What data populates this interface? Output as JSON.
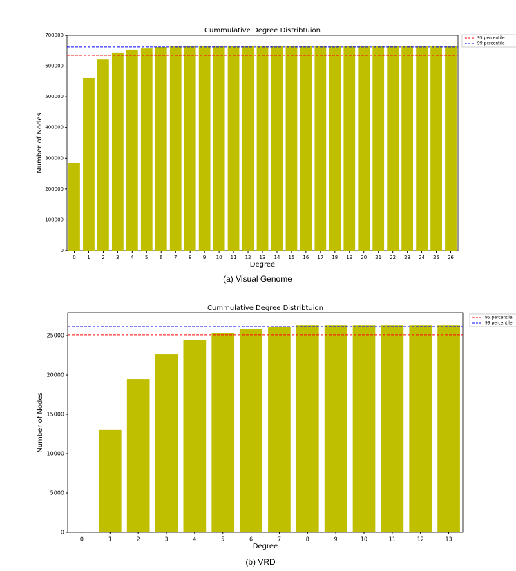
{
  "chart_data": [
    {
      "type": "bar",
      "title": "Cummulative Degree Distribtuion",
      "xlabel": "Degree",
      "ylabel": "Number of Nodes",
      "caption": "(a) Visual Genome",
      "categories": [
        0,
        1,
        2,
        3,
        4,
        5,
        6,
        7,
        8,
        9,
        10,
        11,
        12,
        13,
        14,
        15,
        16,
        17,
        18,
        19,
        20,
        21,
        22,
        23,
        24,
        25,
        26
      ],
      "values": [
        285000,
        561000,
        621000,
        642000,
        653000,
        657000,
        662000,
        664000,
        666000,
        666000,
        666000,
        666000,
        666000,
        666000,
        666000,
        666000,
        666000,
        666000,
        666000,
        666000,
        666000,
        666000,
        666000,
        666000,
        666000,
        666000,
        666000
      ],
      "color": "#bfbf00",
      "ylim": [
        0,
        700000
      ],
      "yticks": [
        0,
        100000,
        200000,
        300000,
        400000,
        500000,
        600000,
        700000
      ],
      "hlines": [
        {
          "name": "95 percentile",
          "color": "#ff0000",
          "value": 635000
        },
        {
          "name": "99 percentile",
          "color": "#0000ff",
          "value": 662000
        }
      ]
    },
    {
      "type": "bar",
      "title": "Cummulative Degree Distribtuion",
      "xlabel": "Degree",
      "ylabel": "Number of Nodes",
      "caption": "(b) VRD",
      "categories": [
        0,
        1,
        2,
        3,
        4,
        5,
        6,
        7,
        8,
        9,
        10,
        11,
        12,
        13
      ],
      "values": [
        0,
        13000,
        19470,
        22630,
        24470,
        25350,
        25880,
        26150,
        26300,
        26300,
        26300,
        26300,
        26300,
        26300
      ],
      "color": "#bfbf00",
      "ylim": [
        0,
        27900
      ],
      "yticks": [
        0,
        5000,
        10000,
        15000,
        20000,
        25000
      ],
      "hlines": [
        {
          "name": "95 percentile",
          "color": "#ff0000",
          "value": 25100
        },
        {
          "name": "99 percentile",
          "color": "#0000ff",
          "value": 26150
        }
      ]
    }
  ]
}
